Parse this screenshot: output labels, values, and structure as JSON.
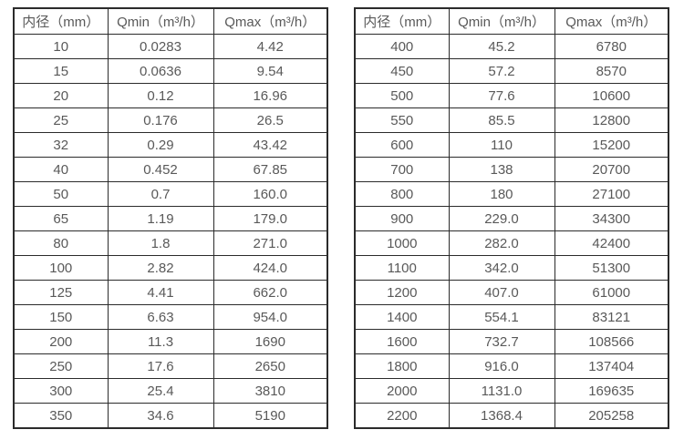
{
  "text_color": "#595959",
  "border_color": "#2b2b2b",
  "tables": [
    {
      "name": "small-diameter-flow-rates",
      "headers": [
        "内径（mm）",
        "Qmin（m³/h）",
        "Qmax（m³/h）"
      ],
      "rows": [
        [
          "10",
          "0.0283",
          "4.42"
        ],
        [
          "15",
          "0.0636",
          "9.54"
        ],
        [
          "20",
          "0.12",
          "16.96"
        ],
        [
          "25",
          "0.176",
          "26.5"
        ],
        [
          "32",
          "0.29",
          "43.42"
        ],
        [
          "40",
          "0.452",
          "67.85"
        ],
        [
          "50",
          "0.7",
          "160.0"
        ],
        [
          "65",
          "1.19",
          "179.0"
        ],
        [
          "80",
          "1.8",
          "271.0"
        ],
        [
          "100",
          "2.82",
          "424.0"
        ],
        [
          "125",
          "4.41",
          "662.0"
        ],
        [
          "150",
          "6.63",
          "954.0"
        ],
        [
          "200",
          "11.3",
          "1690"
        ],
        [
          "250",
          "17.6",
          "2650"
        ],
        [
          "300",
          "25.4",
          "3810"
        ],
        [
          "350",
          "34.6",
          "5190"
        ]
      ]
    },
    {
      "name": "large-diameter-flow-rates",
      "headers": [
        "内径（mm）",
        "Qmin（m³/h）",
        "Qmax（m³/h）"
      ],
      "rows": [
        [
          "400",
          "45.2",
          "6780"
        ],
        [
          "450",
          "57.2",
          "8570"
        ],
        [
          "500",
          "77.6",
          "10600"
        ],
        [
          "550",
          "85.5",
          "12800"
        ],
        [
          "600",
          "110",
          "15200"
        ],
        [
          "700",
          "138",
          "20700"
        ],
        [
          "800",
          "180",
          "27100"
        ],
        [
          "900",
          "229.0",
          "34300"
        ],
        [
          "1000",
          "282.0",
          "42400"
        ],
        [
          "1100",
          "342.0",
          "51300"
        ],
        [
          "1200",
          "407.0",
          "61000"
        ],
        [
          "1400",
          "554.1",
          "83121"
        ],
        [
          "1600",
          "732.7",
          "108566"
        ],
        [
          "1800",
          "916.0",
          "137404"
        ],
        [
          "2000",
          "1131.0",
          "169635"
        ],
        [
          "2200",
          "1368.4",
          "205258"
        ]
      ]
    }
  ]
}
